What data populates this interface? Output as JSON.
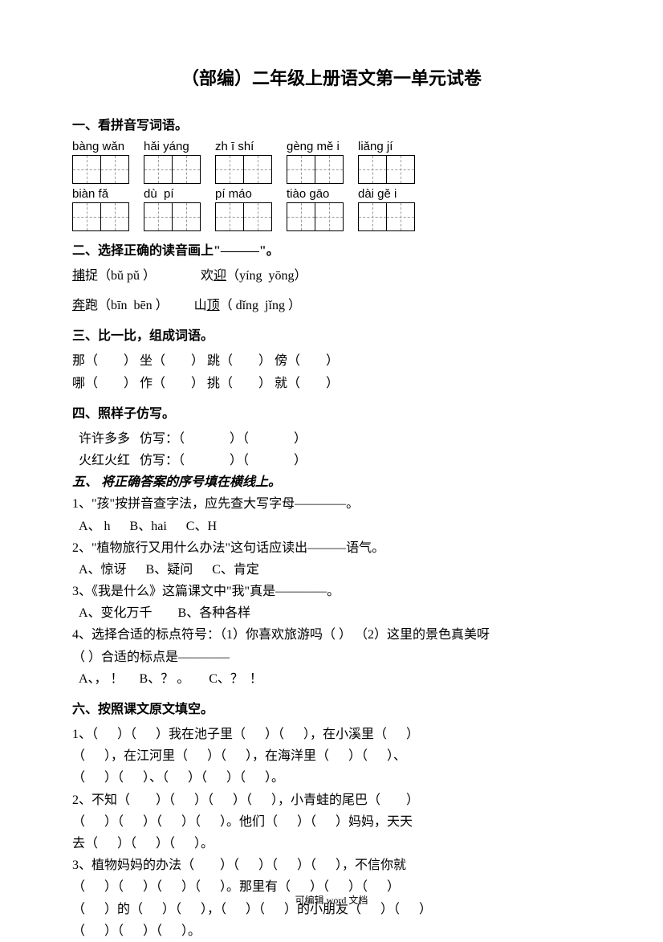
{
  "title": "（部编）二年级上册语文第一单元试卷",
  "s1": {
    "head": "一、看拼音写词语。",
    "row1": [
      {
        "py": "bàng wǎn",
        "n": 2
      },
      {
        "py": "hǎi yáng",
        "n": 2
      },
      {
        "py": "zh ī shí",
        "n": 2
      },
      {
        "py": "gèng mě i",
        "n": 2
      },
      {
        "py": "liǎng jí",
        "n": 2
      }
    ],
    "row2": [
      {
        "py": "biàn fǎ",
        "n": 2
      },
      {
        "py": "dù  pí",
        "n": 2
      },
      {
        "py": "pí máo",
        "n": 2
      },
      {
        "py": "tiào gāo",
        "n": 2
      },
      {
        "py": "dài gě i",
        "n": 2
      }
    ]
  },
  "s2": {
    "head": "二、选择正确的读音画上\"———\"。",
    "l1a_u": "捕",
    "l1a": "捉（bǔ pǔ ）",
    "l1b_u": "迎",
    "l1b_pre": "欢",
    "l1b": "（yíng  yōng）",
    "l2a_u": "奔",
    "l2a": "跑（bīn  bēn ）",
    "l2b_u": "顶",
    "l2b_pre": "山",
    "l2b": "（ dǐng  jǐng ）"
  },
  "s3": {
    "head": "三、比一比，组成词语。",
    "l1": "那（        ） 坐（        ） 跳（        ） 傍（        ）",
    "l2": "哪（        ） 作（        ） 挑（        ） 就（        ）"
  },
  "s4": {
    "head": "四、照样子仿写。",
    "l1": "  许许多多   仿写：（              ）（              ）",
    "l2": "  火红火红   仿写：（              ）（              ）"
  },
  "s5": {
    "head": "五、 将正确答案的序号填在横线上。",
    "q1": "1、\"孩\"按拼音查字法，应先查大写字母————。",
    "a1": "  A、 h      B、hai      C、H",
    "q2": "2、\"植物旅行又用什么办法\"这句话应读出———语气。",
    "a2": "  A、惊讶      B、疑问      C、肯定",
    "q3": "3、《我是什么》这篇课文中\"我\"真是————。",
    "a3": "  A、变化万千        B、各种各样",
    "q4a": "4、选择合适的标点符号：（1）你喜欢旅游吗（ ） （2）这里的景色真美呀",
    "q4b": "（ ）合适的标点是————",
    "a4": "  A、， ！     B、？ 。      C、？  ！"
  },
  "s6": {
    "head": "六、按照课文原文填空。",
    "l1": "1、（      ）（      ）我在池子里（      ）（      ），在小溪里（      ）",
    "l2": "（      ），在江河里（      ）（      ），在海洋里（      ）（      ）、",
    "l3": "（      ）（      ）、（      ）（      ）（      ）。",
    "l4": "2、不知（        ）（      ）（      ）（      ），小青蛙的尾巴（        ）",
    "l5": "（      ）（      ）（      ）（      ）。他们（      ）（      ）妈妈，天天",
    "l6": "去（      ）（      ）（      ）。",
    "l7": "3、植物妈妈的办法（        ）（      ）（      ）（      ），不信你就",
    "l8": "（      ）（      ）（      ）（      ）。那里有（      ）（      ）（      ）",
    "l9": "（      ）的（      ）（      ），（      ）（      ）的小朋友（      ）（      ）",
    "l10": "（      ）（      ）（      ）。"
  },
  "footer": "可编辑 word 文档",
  "colors": {
    "text": "#000000",
    "bg": "#ffffff",
    "dash": "#999999"
  },
  "fonts": {
    "body_pt": 16,
    "title_pt": 22,
    "pinyin_pt": 15,
    "footer_pt": 12
  }
}
